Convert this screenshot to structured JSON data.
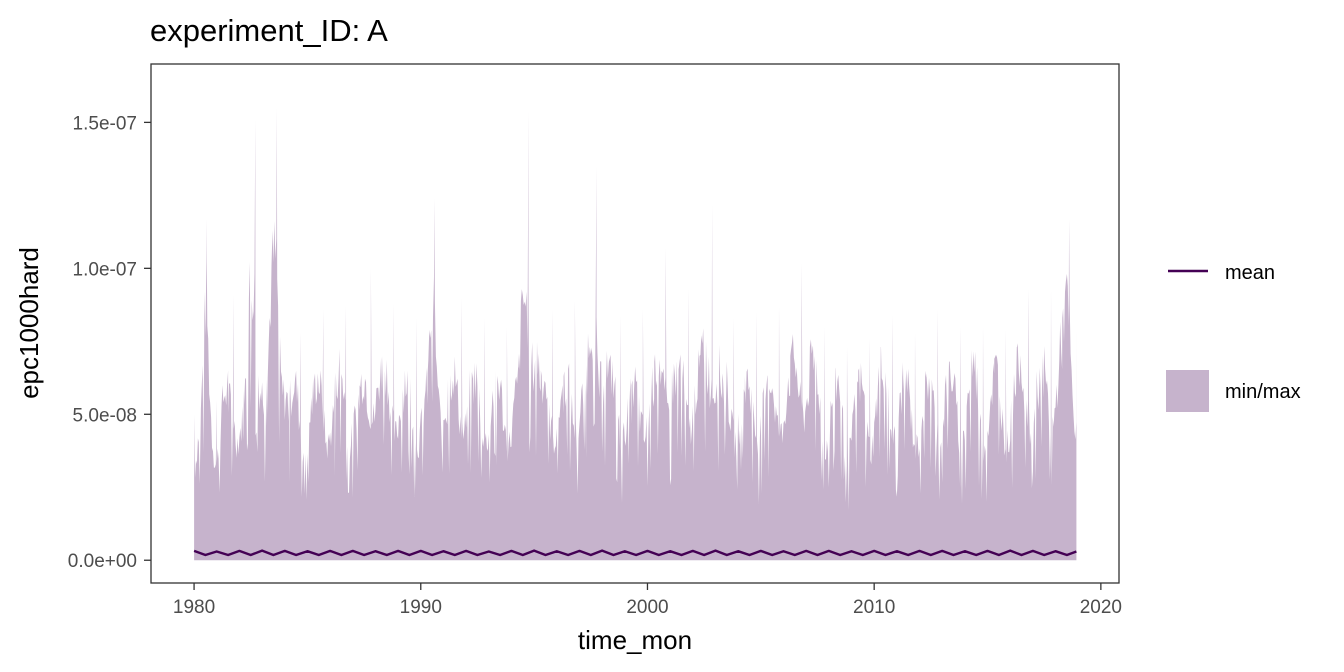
{
  "chart_data": {
    "type": "area",
    "title": "experiment_ID: A",
    "xlabel": "time_mon",
    "ylabel": "epc1000hard",
    "xlim": [
      1978.1,
      2020.8
    ],
    "ylim": [
      -7.8e-09,
      1.7e-07
    ],
    "x_ticks": [
      1980,
      1990,
      2000,
      2010,
      2020
    ],
    "x_tick_labels": [
      "1980",
      "1990",
      "2000",
      "2010",
      "2020"
    ],
    "y_ticks": [
      0,
      5e-08,
      1e-07,
      1.5e-07
    ],
    "y_tick_labels": [
      "0.0e+00",
      "5.0e-08",
      "1.0e-07",
      "1.5e-07"
    ],
    "grid": false,
    "legend_position": "right",
    "x_start": 1980.0,
    "x_end": 2018.92,
    "series": [
      {
        "name": "mean",
        "type": "line",
        "color": "#440154",
        "x": [
          1980.0,
          1980.5,
          1981.0,
          1981.5,
          1982.0,
          1982.5,
          1983.0,
          1983.5,
          1984.0,
          1984.5,
          1985.0,
          1985.5,
          1986.0,
          1986.5,
          1987.0,
          1987.5,
          1988.0,
          1988.5,
          1989.0,
          1989.5,
          1990.0,
          1990.5,
          1991.0,
          1991.5,
          1992.0,
          1992.5,
          1993.0,
          1993.5,
          1994.0,
          1994.5,
          1995.0,
          1995.5,
          1996.0,
          1996.5,
          1997.0,
          1997.5,
          1998.0,
          1998.5,
          1999.0,
          1999.5,
          2000.0,
          2000.5,
          2001.0,
          2001.5,
          2002.0,
          2002.5,
          2003.0,
          2003.5,
          2004.0,
          2004.5,
          2005.0,
          2005.5,
          2006.0,
          2006.5,
          2007.0,
          2007.5,
          2008.0,
          2008.5,
          2009.0,
          2009.5,
          2010.0,
          2010.5,
          2011.0,
          2011.5,
          2012.0,
          2012.5,
          2013.0,
          2013.5,
          2014.0,
          2014.5,
          2015.0,
          2015.5,
          2016.0,
          2016.5,
          2017.0,
          2017.5,
          2018.0,
          2018.5,
          2018.92
        ],
        "y": [
          3.2e-09,
          1.8e-09,
          3e-09,
          1.8e-09,
          3.2e-09,
          1.8e-09,
          3.3e-09,
          1.8e-09,
          3.2e-09,
          1.8e-09,
          3.1e-09,
          1.8e-09,
          3.2e-09,
          1.8e-09,
          3.2e-09,
          1.8e-09,
          3.1e-09,
          1.8e-09,
          3.2e-09,
          1.8e-09,
          3.2e-09,
          1.8e-09,
          3.1e-09,
          1.8e-09,
          3.2e-09,
          1.8e-09,
          3e-09,
          1.8e-09,
          3.2e-09,
          1.8e-09,
          3.3e-09,
          1.8e-09,
          3.1e-09,
          1.8e-09,
          3.2e-09,
          1.8e-09,
          3.3e-09,
          1.8e-09,
          3.1e-09,
          1.8e-09,
          3.2e-09,
          1.8e-09,
          3.1e-09,
          1.8e-09,
          3.2e-09,
          1.8e-09,
          3.3e-09,
          1.8e-09,
          3.1e-09,
          1.8e-09,
          3.2e-09,
          1.8e-09,
          3.1e-09,
          1.8e-09,
          3.2e-09,
          1.8e-09,
          3.2e-09,
          1.8e-09,
          3.1e-09,
          1.8e-09,
          3.2e-09,
          1.8e-09,
          3.1e-09,
          1.8e-09,
          3.2e-09,
          1.8e-09,
          3.2e-09,
          1.8e-09,
          3.1e-09,
          1.8e-09,
          3.2e-09,
          1.8e-09,
          3.3e-09,
          1.8e-09,
          3.2e-09,
          1.8e-09,
          3.1e-09,
          1.8e-09,
          3e-09
        ]
      },
      {
        "name": "min/max",
        "type": "ribbon",
        "color": "#c6b3cc",
        "min": 0,
        "max_peaks": [
          [
            1980.0,
            5e-08
          ],
          [
            1980.3,
            5.2e-08
          ],
          [
            1980.55,
            1.17e-07
          ],
          [
            1981.0,
            5.5e-08
          ],
          [
            1981.5,
            6.5e-08
          ],
          [
            1981.75,
            9.1e-08
          ],
          [
            1982.2,
            5.8e-08
          ],
          [
            1982.7,
            1.51e-07
          ],
          [
            1983.2,
            6.2e-08
          ],
          [
            1983.65,
            1.55e-07
          ],
          [
            1984.2,
            6e-08
          ],
          [
            1984.7,
            7.8e-08
          ],
          [
            1985.3,
            6.2e-08
          ],
          [
            1985.7,
            8.6e-08
          ],
          [
            1986.2,
            6.3e-08
          ],
          [
            1986.7,
            8.7e-08
          ],
          [
            1987.3,
            6e-08
          ],
          [
            1987.8,
            1e-07
          ],
          [
            1988.3,
            7e-08
          ],
          [
            1988.8,
            8.8e-08
          ],
          [
            1989.3,
            6.5e-08
          ],
          [
            1989.8,
            8.3e-08
          ],
          [
            1990.3,
            6.4e-08
          ],
          [
            1990.6,
            1.24e-07
          ],
          [
            1991.2,
            6.2e-08
          ],
          [
            1991.8,
            9e-08
          ],
          [
            1992.3,
            6.5e-08
          ],
          [
            1992.8,
            8.3e-08
          ],
          [
            1993.3,
            6.5e-08
          ],
          [
            1993.8,
            8e-08
          ],
          [
            1994.3,
            6.6e-08
          ],
          [
            1994.75,
            1.54e-07
          ],
          [
            1995.3,
            6.5e-08
          ],
          [
            1995.8,
            8.6e-08
          ],
          [
            1996.3,
            6.3e-08
          ],
          [
            1996.8,
            8.9e-08
          ],
          [
            1997.3,
            6.7e-08
          ],
          [
            1997.75,
            1.35e-07
          ],
          [
            1998.3,
            6.8e-08
          ],
          [
            1998.8,
            8.4e-08
          ],
          [
            1999.3,
            6e-08
          ],
          [
            1999.8,
            8.6e-08
          ],
          [
            2000.3,
            6.8e-08
          ],
          [
            2000.8,
            1.07e-07
          ],
          [
            2001.3,
            6.8e-08
          ],
          [
            2001.8,
            9.3e-08
          ],
          [
            2002.3,
            7e-08
          ],
          [
            2002.85,
            1.22e-07
          ],
          [
            2003.3,
            6.4e-08
          ],
          [
            2003.8,
            8.3e-08
          ],
          [
            2004.3,
            6.3e-08
          ],
          [
            2004.8,
            8.5e-08
          ],
          [
            2005.3,
            6.3e-08
          ],
          [
            2005.8,
            8.7e-08
          ],
          [
            2006.3,
            7e-08
          ],
          [
            2006.8,
            1.02e-07
          ],
          [
            2007.3,
            7.3e-08
          ],
          [
            2007.8,
            8e-08
          ],
          [
            2008.3,
            6.6e-08
          ],
          [
            2008.8,
            7.3e-08
          ],
          [
            2009.3,
            6.5e-08
          ],
          [
            2009.8,
            7.6e-08
          ],
          [
            2010.3,
            7.3e-08
          ],
          [
            2010.8,
            8.4e-08
          ],
          [
            2011.3,
            6.6e-08
          ],
          [
            2011.8,
            7.8e-08
          ],
          [
            2012.3,
            6.4e-08
          ],
          [
            2012.8,
            8.6e-08
          ],
          [
            2013.3,
            6.8e-08
          ],
          [
            2013.8,
            8e-08
          ],
          [
            2014.3,
            7.2e-08
          ],
          [
            2014.8,
            8e-08
          ],
          [
            2015.3,
            6.9e-08
          ],
          [
            2015.8,
            7.9e-08
          ],
          [
            2016.3,
            7.3e-08
          ],
          [
            2016.8,
            9.3e-08
          ],
          [
            2017.3,
            6.6e-08
          ],
          [
            2017.8,
            9.3e-08
          ],
          [
            2018.3,
            8.3e-08
          ],
          [
            2018.6,
            1.17e-07
          ],
          [
            2018.92,
            8e-08
          ]
        ]
      }
    ]
  },
  "legend": {
    "items": [
      {
        "label": "mean",
        "color": "#440154"
      },
      {
        "label": "min/max",
        "color": "#c6b3cc"
      }
    ]
  }
}
